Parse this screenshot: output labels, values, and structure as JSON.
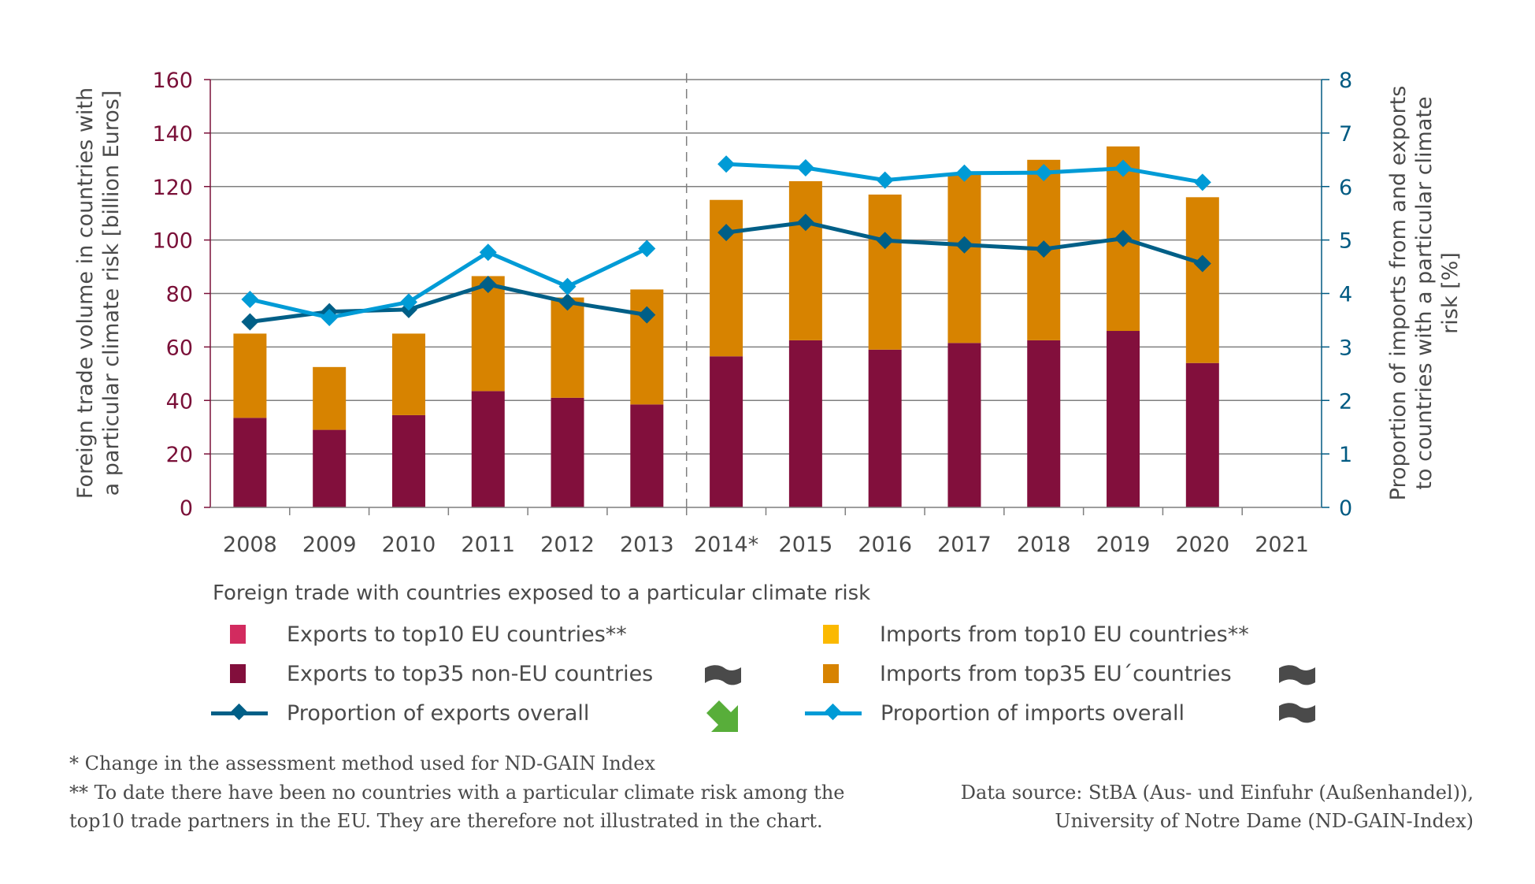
{
  "chart_data": {
    "type": "bar",
    "subtype": "stacked bar with dual-axis lines",
    "title": "Foreign trade with countries exposed to a particular climate risk",
    "categories": [
      "2008",
      "2009",
      "2010",
      "2011",
      "2012",
      "2013",
      "2014*",
      "2015",
      "2016",
      "2017",
      "2018",
      "2019",
      "2020",
      "2021"
    ],
    "ylabel_left": "Foreign trade volume in countries with a particular climate risk [billion Euros]",
    "ylabel_right": "Proportion of imports from and exports to countries with a particular climate risk [%]",
    "ylim_left": [
      0,
      160
    ],
    "yticks_left": [
      0,
      20,
      40,
      60,
      80,
      100,
      120,
      140,
      160
    ],
    "ylim_right": [
      0,
      8
    ],
    "yticks_right": [
      0,
      1,
      2,
      3,
      4,
      5,
      6,
      7,
      8
    ],
    "grid": true,
    "method_break_after": "2013",
    "series": [
      {
        "name": "Exports to top10 EU countries**",
        "type": "bar",
        "axis": "left",
        "color": "#d22b5f",
        "values": [
          0,
          0,
          0,
          0,
          0,
          0,
          0,
          0,
          0,
          0,
          0,
          0,
          0,
          null
        ]
      },
      {
        "name": "Exports to top35 non-EU countries",
        "type": "bar",
        "axis": "left",
        "color": "#820f3c",
        "values": [
          33.5,
          29.0,
          34.5,
          43.5,
          41.0,
          38.5,
          56.5,
          62.5,
          59.0,
          61.5,
          62.5,
          66.0,
          54.0,
          null
        ]
      },
      {
        "name": "Imports from top10 EU countries**",
        "type": "bar",
        "axis": "left",
        "color": "#fbb900",
        "values": [
          0,
          0,
          0,
          0,
          0,
          0,
          0,
          0,
          0,
          0,
          0,
          0,
          0,
          null
        ]
      },
      {
        "name": "Imports from top35 EU´countries",
        "type": "bar",
        "axis": "left",
        "color": "#d78300",
        "values": [
          31.5,
          23.5,
          30.5,
          43.0,
          37.5,
          43.0,
          58.5,
          59.5,
          58.0,
          63.5,
          67.5,
          69.0,
          62.0,
          null
        ]
      },
      {
        "name": "Proportion of exports overall",
        "type": "line",
        "axis": "right",
        "color": "#005f87",
        "values": [
          3.47,
          3.66,
          3.7,
          4.17,
          3.84,
          3.6,
          5.14,
          5.33,
          4.99,
          4.91,
          4.83,
          5.03,
          4.56,
          null
        ]
      },
      {
        "name": "Proportion of imports overall",
        "type": "line",
        "axis": "right",
        "color": "#009bd6",
        "values": [
          3.89,
          3.55,
          3.84,
          4.77,
          4.13,
          4.84,
          6.42,
          6.35,
          6.12,
          6.25,
          6.26,
          6.34,
          6.08,
          null
        ]
      }
    ],
    "legend_placement": "bottom"
  },
  "legend": {
    "title": "Foreign trade with countries exposed to a particular climate risk",
    "items": [
      {
        "label": "Exports to top10 EU countries**",
        "kind": "swatch",
        "color": "#d22b5f",
        "trend": null
      },
      {
        "label": "Imports from top10 EU countries**",
        "kind": "swatch",
        "color": "#fbb900",
        "trend": null
      },
      {
        "label": "Exports to top35 non-EU countries",
        "kind": "swatch",
        "color": "#820f3c",
        "trend": "sideways-trend-icon"
      },
      {
        "label": "Imports from top35 EU´countries",
        "kind": "swatch",
        "color": "#d78300",
        "trend": "sideways-trend-icon"
      },
      {
        "label": "Proportion of exports overall",
        "kind": "line",
        "color": "#005f87",
        "trend": "down-arrow-trend-icon"
      },
      {
        "label": "Proportion of imports overall",
        "kind": "line",
        "color": "#009bd6",
        "trend": "sideways-trend-icon"
      }
    ],
    "trend_colors": {
      "sideways": "#4a4a4a",
      "down": "#58ae3a"
    }
  },
  "footnotes": [
    "* Change in the assessment method used for ND-GAIN Index",
    "** To date there have been no countries with a particular climate risk among the",
    "top10 trade partners in the EU. They are therefore not illustrated in the chart."
  ],
  "source": [
    "Data source: StBA (Aus- und Einfuhr (Außenhandel)),",
    "University of Notre Dame (ND-GAIN-Index)"
  ],
  "colors": {
    "left_axis": "#7a1038",
    "right_axis": "#005a82",
    "grid": "#7f7f7f",
    "text": "#4a4a4a"
  }
}
